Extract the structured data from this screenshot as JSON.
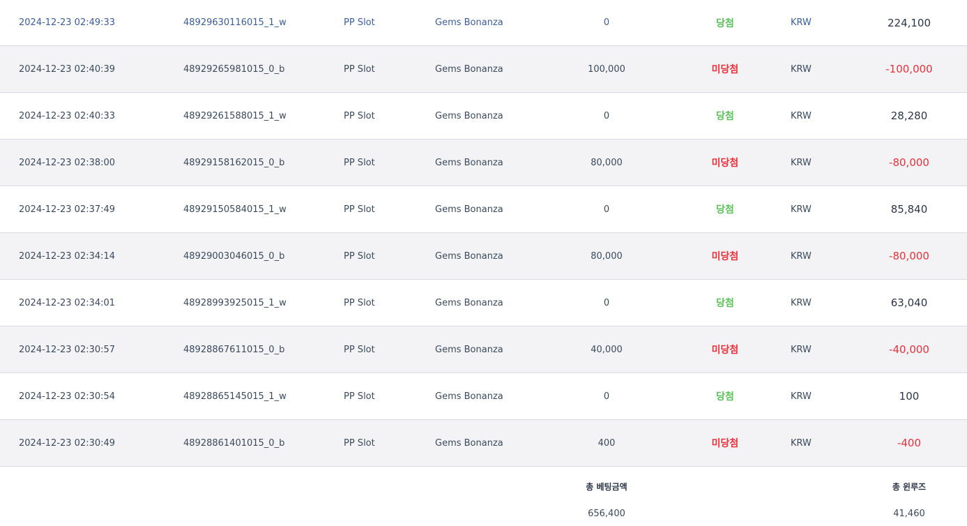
{
  "rows": [
    {
      "date": "2024-12-23 02:49:33",
      "id": "48929630116015_1_w",
      "provider": "PP Slot",
      "game": "Gems Bonanza",
      "bet": "0",
      "result": "당첨",
      "result_type": "win",
      "currency": "KRW",
      "winloss": "224,100",
      "winloss_type": "positive"
    },
    {
      "date": "2024-12-23 02:40:39",
      "id": "48929265981015_0_b",
      "provider": "PP Slot",
      "game": "Gems Bonanza",
      "bet": "100,000",
      "result": "미당첨",
      "result_type": "lose",
      "currency": "KRW",
      "winloss": "-100,000",
      "winloss_type": "negative"
    },
    {
      "date": "2024-12-23 02:40:33",
      "id": "48929261588015_1_w",
      "provider": "PP Slot",
      "game": "Gems Bonanza",
      "bet": "0",
      "result": "당첨",
      "result_type": "win",
      "currency": "KRW",
      "winloss": "28,280",
      "winloss_type": "positive"
    },
    {
      "date": "2024-12-23 02:38:00",
      "id": "48929158162015_0_b",
      "provider": "PP Slot",
      "game": "Gems Bonanza",
      "bet": "80,000",
      "result": "미당첨",
      "result_type": "lose",
      "currency": "KRW",
      "winloss": "-80,000",
      "winloss_type": "negative"
    },
    {
      "date": "2024-12-23 02:37:49",
      "id": "48929150584015_1_w",
      "provider": "PP Slot",
      "game": "Gems Bonanza",
      "bet": "0",
      "result": "당첨",
      "result_type": "win",
      "currency": "KRW",
      "winloss": "85,840",
      "winloss_type": "positive"
    },
    {
      "date": "2024-12-23 02:34:14",
      "id": "48929003046015_0_b",
      "provider": "PP Slot",
      "game": "Gems Bonanza",
      "bet": "80,000",
      "result": "미당첨",
      "result_type": "lose",
      "currency": "KRW",
      "winloss": "-80,000",
      "winloss_type": "negative"
    },
    {
      "date": "2024-12-23 02:34:01",
      "id": "48928993925015_1_w",
      "provider": "PP Slot",
      "game": "Gems Bonanza",
      "bet": "0",
      "result": "당첨",
      "result_type": "win",
      "currency": "KRW",
      "winloss": "63,040",
      "winloss_type": "positive"
    },
    {
      "date": "2024-12-23 02:30:57",
      "id": "48928867611015_0_b",
      "provider": "PP Slot",
      "game": "Gems Bonanza",
      "bet": "40,000",
      "result": "미당첨",
      "result_type": "lose",
      "currency": "KRW",
      "winloss": "-40,000",
      "winloss_type": "negative"
    },
    {
      "date": "2024-12-23 02:30:54",
      "id": "48928865145015_1_w",
      "provider": "PP Slot",
      "game": "Gems Bonanza",
      "bet": "0",
      "result": "당첨",
      "result_type": "win",
      "currency": "KRW",
      "winloss": "100",
      "winloss_type": "positive"
    },
    {
      "date": "2024-12-23 02:30:49",
      "id": "48928861401015_0_b",
      "provider": "PP Slot",
      "game": "Gems Bonanza",
      "bet": "400",
      "result": "미당첨",
      "result_type": "lose",
      "currency": "KRW",
      "winloss": "-400",
      "winloss_type": "negative"
    }
  ],
  "summary": {
    "total_bet_label": "총 베팅금액",
    "total_bet_value": "656,400",
    "total_winloss_label": "총 윈루즈",
    "total_winloss_value": "41,460"
  },
  "colors": {
    "win": "#5cc15a",
    "lose": "#e8313b",
    "link": "#3b5d9a",
    "alt_row_bg": "#f3f3f5"
  }
}
